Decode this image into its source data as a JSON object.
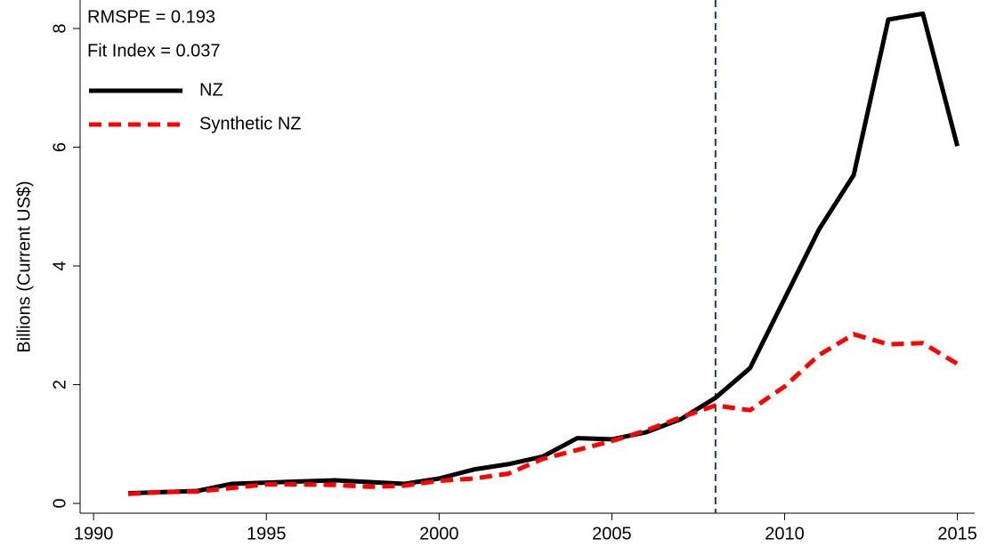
{
  "chart_data": {
    "type": "line",
    "y_label": "Billions (Current US$)",
    "annotations": [
      "RMSPE = 0.193",
      "Fit Index = 0.037"
    ],
    "x": [
      1991,
      1992,
      1993,
      1994,
      1995,
      1996,
      1997,
      1998,
      1999,
      2000,
      2001,
      2002,
      2003,
      2004,
      2005,
      2006,
      2007,
      2008,
      2009,
      2010,
      2011,
      2012,
      2013,
      2014,
      2015
    ],
    "series": [
      {
        "name": "NZ",
        "color": "#000000",
        "dash": "solid",
        "values": [
          0.17,
          0.19,
          0.21,
          0.33,
          0.35,
          0.37,
          0.39,
          0.36,
          0.33,
          0.42,
          0.57,
          0.66,
          0.79,
          1.1,
          1.08,
          1.2,
          1.42,
          1.78,
          2.28,
          3.45,
          4.62,
          5.53,
          8.15,
          8.25,
          6.02
        ]
      },
      {
        "name": "Synthetic NZ",
        "color": "#ff0000",
        "dash": "dashed",
        "values": [
          0.16,
          0.19,
          0.2,
          0.26,
          0.32,
          0.32,
          0.31,
          0.28,
          0.3,
          0.38,
          0.42,
          0.5,
          0.75,
          0.9,
          1.05,
          1.23,
          1.45,
          1.65,
          1.57,
          1.97,
          2.5,
          2.85,
          2.68,
          2.7,
          2.35
        ]
      }
    ],
    "treatment_x": 2008,
    "treatment_color": "#1f3a68",
    "xlim": [
      1989.61,
      2015.5
    ],
    "xticks": [
      1990,
      1995,
      2000,
      2005,
      2010,
      2015
    ],
    "ylim": [
      -0.165,
      8.48
    ],
    "yticks": [
      0,
      2,
      4,
      6,
      8
    ],
    "legend": "upper-left"
  }
}
